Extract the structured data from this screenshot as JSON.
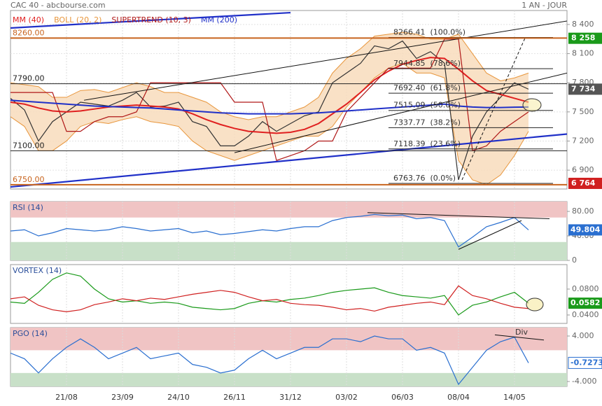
{
  "chart_data": [
    {
      "type": "line",
      "title": "CAC 40 - abcbourse.com",
      "subtitle": "1 AN - JOUR",
      "categories": [
        null,
        null,
        null,
        null,
        "21/08",
        null,
        null,
        null,
        "23/09",
        null,
        null,
        null,
        "24/10",
        null,
        null,
        null,
        "26/11",
        null,
        null,
        null,
        "31/12",
        null,
        null,
        null,
        "03/02",
        null,
        null,
        null,
        "06/03",
        null,
        null,
        null,
        "08/04",
        null,
        null,
        null,
        "14/05",
        null
      ],
      "ylim": [
        6706,
        8544
      ],
      "yticks": [
        {
          "value": 6900,
          "label": "6 900"
        },
        {
          "value": 7200,
          "label": "7 200"
        },
        {
          "value": 7500,
          "label": "7 500"
        },
        {
          "value": 7800,
          "label": "7 800"
        },
        {
          "value": 8100,
          "label": "8 100"
        },
        {
          "value": 8400,
          "label": "8 400"
        }
      ],
      "grid": true,
      "series": [
        {
          "color": "#333333",
          "values": [
            7640,
            7520,
            7200,
            7400,
            7500,
            7600,
            7580,
            7560,
            7620,
            7700,
            7550,
            7560,
            7600,
            7400,
            7350,
            7150,
            7150,
            7250,
            7400,
            7300,
            7380,
            7460,
            7500,
            7800,
            7900,
            8000,
            8180,
            8150,
            8230,
            8050,
            8120,
            8000,
            6800,
            7250,
            7500,
            7650,
            7800,
            7734
          ]
        },
        {
          "name": "MM (40)",
          "color": "#e02020",
          "values": [
            7600,
            7580,
            7540,
            7510,
            7500,
            7510,
            7530,
            7550,
            7560,
            7570,
            7560,
            7550,
            7530,
            7480,
            7420,
            7370,
            7330,
            7300,
            7290,
            7280,
            7290,
            7320,
            7380,
            7480,
            7580,
            7700,
            7830,
            7920,
            7990,
            8030,
            8060,
            8050,
            7940,
            7820,
            7720,
            7680,
            7640,
            7600
          ]
        },
        {
          "name": "BOLL (20, 2)",
          "color": "#e8963c",
          "fill": "#f8dcbc",
          "values": [
            7800,
            7780,
            7760,
            7650,
            7650,
            7720,
            7730,
            7700,
            7750,
            7800,
            7760,
            7700,
            7700,
            7650,
            7600,
            7500,
            7450,
            7420,
            7450,
            7450,
            7500,
            7550,
            7650,
            7900,
            8050,
            8150,
            8280,
            8300,
            8320,
            8300,
            8250,
            8250,
            8300,
            8100,
            7900,
            7820,
            7850,
            7900
          ],
          "lower": [
            7450,
            7350,
            7100,
            7100,
            7200,
            7350,
            7400,
            7380,
            7420,
            7450,
            7400,
            7380,
            7350,
            7200,
            7100,
            7050,
            7000,
            7050,
            7100,
            7150,
            7200,
            7250,
            7250,
            7350,
            7550,
            7700,
            7850,
            7950,
            8000,
            7900,
            7900,
            7850,
            7000,
            6800,
            6750,
            6850,
            7050,
            7300
          ]
        },
        {
          "name": "SUPERTREND (10, 3)",
          "color": "#b01818",
          "values": [
            7700,
            7700,
            7700,
            7700,
            7300,
            7300,
            7400,
            7450,
            7450,
            7500,
            7800,
            7800,
            7800,
            7800,
            7800,
            7800,
            7600,
            7600,
            7600,
            7000,
            7050,
            7100,
            7200,
            7200,
            7500,
            7650,
            7800,
            7950,
            7950,
            7950,
            7950,
            8250,
            8250,
            7100,
            7150,
            7300,
            7400,
            7500
          ]
        },
        {
          "name": "MM (200)",
          "color": "#2030c8",
          "values": [
            7620,
            7610,
            7600,
            7590,
            7580,
            7570,
            7560,
            7555,
            7550,
            7545,
            7540,
            7530,
            7520,
            7510,
            7500,
            7490,
            7485,
            7480,
            7480,
            7480,
            7480,
            7485,
            7490,
            7500,
            7510,
            7520,
            7530,
            7540,
            7550,
            7560,
            7570,
            7580,
            7560,
            7550,
            7545,
            7545,
            7548,
            7550
          ]
        }
      ],
      "levels": [
        {
          "value": 8260,
          "label": "8260.00",
          "color": "#c8641e"
        },
        {
          "value": 7790,
          "label": "7790.00",
          "color": "#222222"
        },
        {
          "value": 7100,
          "label": "7100.00",
          "color": "#222222"
        },
        {
          "value": 6750,
          "label": "6750.00",
          "color": "#c8641e"
        }
      ],
      "fibonacci": [
        {
          "value": 8266.41,
          "label": "8266.41  (100.0%)"
        },
        {
          "value": 7944.85,
          "label": "7944.85  (78.6%)"
        },
        {
          "value": 7692.4,
          "label": "7692.40  (61.8%)"
        },
        {
          "value": 7515.09,
          "label": "7515.09  (50.0%)"
        },
        {
          "value": 7337.77,
          "label": "7337.77  (38.2%)"
        },
        {
          "value": 7118.39,
          "label": "7118.39  (23.6%)"
        },
        {
          "value": 6763.76,
          "label": "6763.76  (0.0%)"
        }
      ],
      "trendlines": [
        {
          "x": [
            5.25,
            39.75
          ],
          "y": [
            7620,
            8436
          ],
          "color": "#111111"
        },
        {
          "x": [
            16,
            39.75
          ],
          "y": [
            7080,
            7900
          ],
          "color": "#111111"
        },
        {
          "x": [
            0,
            39.75
          ],
          "y": [
            6727,
            7272
          ],
          "color": "#2030c8"
        },
        {
          "x": [
            0,
            20
          ],
          "y": [
            8364,
            8522
          ],
          "color": "#2030c8"
        },
        {
          "x": [
            32.25,
            36.75
          ],
          "y": [
            6800,
            8260
          ],
          "color": "#111111",
          "dash": true
        }
      ],
      "price_markers": [
        {
          "value": 8258,
          "label": "8 258",
          "color": "#1a9a1a"
        },
        {
          "value": 7734,
          "label": "7 734",
          "color": "#555555"
        },
        {
          "value": 6764,
          "label": "6 764",
          "color": "#d02020"
        }
      ]
    },
    {
      "type": "line",
      "title": "RSI (14)",
      "ylim": [
        0,
        96
      ],
      "yticks": [
        0,
        {
          "value": 40,
          "label": "40.00"
        },
        {
          "value": 80,
          "label": "80.00"
        }
      ],
      "zones": [
        {
          "from": 70,
          "to": 96,
          "color": "#f0c4c4"
        },
        {
          "from": 0,
          "to": 30,
          "color": "#c8e0c8"
        }
      ],
      "badge_color": "#2a6fd0",
      "series": [
        {
          "color": "#2a6fd0",
          "values": [
            48,
            50,
            40,
            45,
            52,
            50,
            48,
            50,
            55,
            52,
            48,
            50,
            52,
            45,
            48,
            42,
            44,
            47,
            50,
            48,
            52,
            55,
            55,
            65,
            70,
            72,
            75,
            73,
            74,
            68,
            70,
            65,
            22,
            38,
            55,
            62,
            70,
            49.804
          ]
        }
      ],
      "trendlines": [
        {
          "x": [
            25.5,
            38.5
          ],
          "y": [
            78,
            68
          ],
          "color": "#111111"
        },
        {
          "x": [
            32,
            36.5
          ],
          "y": [
            18,
            65
          ],
          "color": "#111111"
        }
      ]
    },
    {
      "type": "line",
      "title": "VORTEX (14)",
      "ylim": [
        0.027,
        0.1178
      ],
      "yticks": [
        {
          "value": 0.04,
          "label": "0.0400"
        },
        {
          "value": 0.08,
          "label": "0.0800"
        }
      ],
      "badge_color": "#1a9a1a",
      "series": [
        {
          "color": "#1a9a1a",
          "values": [
            0.06,
            0.058,
            0.075,
            0.095,
            0.105,
            0.1,
            0.08,
            0.065,
            0.06,
            0.062,
            0.058,
            0.06,
            0.058,
            0.052,
            0.05,
            0.048,
            0.05,
            0.058,
            0.062,
            0.06,
            0.064,
            0.066,
            0.07,
            0.075,
            0.078,
            0.08,
            0.082,
            0.075,
            0.07,
            0.068,
            0.066,
            0.07,
            0.04,
            0.055,
            0.06,
            0.068,
            0.075,
            0.0582
          ]
        },
        {
          "color": "#d02020",
          "values": [
            0.065,
            0.068,
            0.055,
            0.048,
            0.045,
            0.048,
            0.056,
            0.06,
            0.065,
            0.062,
            0.066,
            0.064,
            0.068,
            0.072,
            0.075,
            0.078,
            0.075,
            0.068,
            0.062,
            0.064,
            0.058,
            0.056,
            0.055,
            0.052,
            0.048,
            0.05,
            0.046,
            0.052,
            0.055,
            0.058,
            0.06,
            0.056,
            0.085,
            0.07,
            0.065,
            0.058,
            0.052,
            0.05
          ]
        }
      ]
    },
    {
      "type": "line",
      "title": "PGO (14)",
      "ylim": [
        -4.86,
        5.48
      ],
      "yticks": [
        {
          "value": -4,
          "label": "-4.000"
        },
        {
          "value": 4,
          "label": "4.000"
        }
      ],
      "zones": [
        {
          "from": 1.5,
          "to": 5.48,
          "color": "#f0c4c4"
        },
        {
          "from": -4.86,
          "to": -2.5,
          "color": "#c8e0c8"
        }
      ],
      "badge_color": "#ffffff",
      "series": [
        {
          "color": "#2a6fd0",
          "values": [
            1,
            0,
            -2.5,
            0,
            2,
            3.5,
            2,
            0,
            1,
            2,
            0,
            0.5,
            1,
            -1,
            -1.5,
            -2.5,
            -2,
            0,
            1.5,
            0,
            1,
            2,
            2,
            3.5,
            3.5,
            3,
            4,
            3.5,
            3.5,
            1.5,
            2,
            1,
            -4.5,
            -1.5,
            1.5,
            3,
            3.8,
            -0.7273
          ]
        }
      ],
      "trendlines": [
        {
          "x": [
            34.6,
            38.1
          ],
          "y": [
            4.2,
            3.3
          ],
          "color": "#111111"
        }
      ],
      "annotations": [
        {
          "text": "Div",
          "x": 36.5,
          "y": 4.6
        }
      ]
    }
  ]
}
